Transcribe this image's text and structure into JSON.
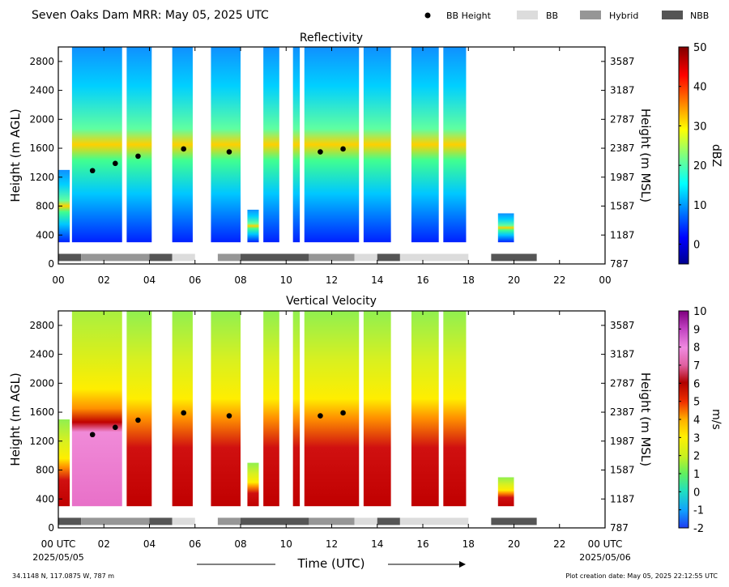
{
  "header": {
    "title": "Seven Oaks Dam MRR:  May 05, 2025 UTC",
    "legend": [
      {
        "label": "BB Height",
        "marker": "dot",
        "color": "#000000"
      },
      {
        "label": "BB",
        "marker": "box",
        "color": "#dcdcdc"
      },
      {
        "label": "Hybrid",
        "marker": "box",
        "color": "#969696"
      },
      {
        "label": "NBB",
        "marker": "box",
        "color": "#555555"
      }
    ]
  },
  "footer": {
    "location": "34.1148 N, 117.0875 W, 787 m",
    "created": "Plot creation date: May 05, 2025 22:12:55 UTC",
    "xlabel": "Time (UTC)",
    "start_date": "2025/05/05",
    "end_date": "2025/05/06"
  },
  "chart_data": [
    {
      "type": "heatmap",
      "title": "Reflectivity",
      "xlabel": "",
      "ylabel": "Height (m AGL)",
      "ylabel_right": "Height (m MSL)",
      "xlim": [
        0,
        24
      ],
      "ylim": [
        0,
        3000
      ],
      "x_ticks": [
        "00",
        "02",
        "04",
        "06",
        "08",
        "10",
        "12",
        "14",
        "16",
        "18",
        "20",
        "22",
        "00"
      ],
      "y_ticks": [
        0,
        400,
        800,
        1200,
        1600,
        2000,
        2400,
        2800
      ],
      "y_ticks_right": [
        "787",
        "1187",
        "1587",
        "1987",
        "2387",
        "2787",
        "3187",
        "3587"
      ],
      "colorbar": {
        "label": "dBZ",
        "min": -5,
        "max": 50,
        "ticks": [
          0,
          10,
          20,
          30,
          40,
          50
        ],
        "palette": "jet"
      },
      "bb_height": [
        {
          "x": 1.5,
          "y": 1290
        },
        {
          "x": 2.5,
          "y": 1390
        },
        {
          "x": 3.5,
          "y": 1490
        },
        {
          "x": 5.5,
          "y": 1590
        },
        {
          "x": 7.5,
          "y": 1550
        },
        {
          "x": 11.5,
          "y": 1550
        },
        {
          "x": 12.5,
          "y": 1590
        }
      ],
      "echo_periods": [
        {
          "start": 0.0,
          "end": 0.5,
          "top": 1300
        },
        {
          "start": 0.6,
          "end": 2.8,
          "top": 3000
        },
        {
          "start": 3.0,
          "end": 4.1,
          "top": 3000
        },
        {
          "start": 5.0,
          "end": 5.9,
          "top": 3000
        },
        {
          "start": 6.7,
          "end": 8.0,
          "top": 3000
        },
        {
          "start": 8.3,
          "end": 8.8,
          "top": 750
        },
        {
          "start": 9.0,
          "end": 9.7,
          "top": 3000
        },
        {
          "start": 10.3,
          "end": 10.6,
          "top": 3000
        },
        {
          "start": 10.8,
          "end": 13.2,
          "top": 3000
        },
        {
          "start": 13.4,
          "end": 14.6,
          "top": 3000
        },
        {
          "start": 15.5,
          "end": 16.7,
          "top": 3000
        },
        {
          "start": 16.9,
          "end": 17.9,
          "top": 3000
        },
        {
          "start": 19.3,
          "end": 20.0,
          "top": 700
        }
      ],
      "bb_type_bars": [
        {
          "start": 0.0,
          "end": 1.0,
          "type": "NBB"
        },
        {
          "start": 1.0,
          "end": 4.0,
          "type": "Hybrid"
        },
        {
          "start": 4.0,
          "end": 5.0,
          "type": "NBB"
        },
        {
          "start": 5.0,
          "end": 6.0,
          "type": "BB"
        },
        {
          "start": 7.0,
          "end": 8.0,
          "type": "Hybrid"
        },
        {
          "start": 8.0,
          "end": 11.0,
          "type": "NBB"
        },
        {
          "start": 11.0,
          "end": 13.0,
          "type": "Hybrid"
        },
        {
          "start": 13.0,
          "end": 14.0,
          "type": "BB"
        },
        {
          "start": 14.0,
          "end": 15.0,
          "type": "NBB"
        },
        {
          "start": 15.0,
          "end": 18.0,
          "type": "BB"
        },
        {
          "start": 19.0,
          "end": 21.0,
          "type": "NBB"
        }
      ]
    },
    {
      "type": "heatmap",
      "title": "Vertical Velocity",
      "xlabel": "Time (UTC)",
      "ylabel": "Height (m AGL)",
      "ylabel_right": "Height (m MSL)",
      "xlim": [
        0,
        24
      ],
      "ylim": [
        0,
        3000
      ],
      "x_ticks": [
        "00 UTC",
        "02",
        "04",
        "06",
        "08",
        "10",
        "12",
        "14",
        "16",
        "18",
        "20",
        "22",
        "00 UTC"
      ],
      "y_ticks": [
        0,
        400,
        800,
        1200,
        1600,
        2000,
        2400,
        2800
      ],
      "y_ticks_right": [
        "787",
        "1187",
        "1587",
        "1987",
        "2387",
        "2787",
        "3187",
        "3587"
      ],
      "colorbar": {
        "label": "m/s",
        "min": -2,
        "max": 10,
        "ticks": [
          -2,
          -1,
          0,
          1,
          2,
          3,
          4,
          5,
          6,
          7,
          8,
          9,
          10
        ],
        "palette": "velocity"
      },
      "bb_height": [
        {
          "x": 1.5,
          "y": 1290
        },
        {
          "x": 2.5,
          "y": 1390
        },
        {
          "x": 3.5,
          "y": 1490
        },
        {
          "x": 5.5,
          "y": 1590
        },
        {
          "x": 7.5,
          "y": 1550
        },
        {
          "x": 11.5,
          "y": 1550
        },
        {
          "x": 12.5,
          "y": 1590
        }
      ],
      "echo_periods": [
        {
          "start": 0.0,
          "end": 0.5,
          "top": 1500
        },
        {
          "start": 0.6,
          "end": 2.8,
          "top": 3000
        },
        {
          "start": 3.0,
          "end": 4.1,
          "top": 3000
        },
        {
          "start": 5.0,
          "end": 5.9,
          "top": 3000
        },
        {
          "start": 6.7,
          "end": 8.0,
          "top": 3000
        },
        {
          "start": 8.3,
          "end": 8.8,
          "top": 900
        },
        {
          "start": 9.0,
          "end": 9.7,
          "top": 3000
        },
        {
          "start": 10.3,
          "end": 10.6,
          "top": 3000
        },
        {
          "start": 10.8,
          "end": 13.2,
          "top": 3000
        },
        {
          "start": 13.4,
          "end": 14.6,
          "top": 3000
        },
        {
          "start": 15.5,
          "end": 16.7,
          "top": 3000
        },
        {
          "start": 16.9,
          "end": 17.9,
          "top": 3000
        },
        {
          "start": 19.3,
          "end": 20.0,
          "top": 700
        }
      ],
      "bb_type_bars": [
        {
          "start": 0.0,
          "end": 1.0,
          "type": "NBB"
        },
        {
          "start": 1.0,
          "end": 4.0,
          "type": "Hybrid"
        },
        {
          "start": 4.0,
          "end": 5.0,
          "type": "NBB"
        },
        {
          "start": 5.0,
          "end": 6.0,
          "type": "BB"
        },
        {
          "start": 7.0,
          "end": 8.0,
          "type": "Hybrid"
        },
        {
          "start": 8.0,
          "end": 11.0,
          "type": "NBB"
        },
        {
          "start": 11.0,
          "end": 13.0,
          "type": "Hybrid"
        },
        {
          "start": 13.0,
          "end": 14.0,
          "type": "BB"
        },
        {
          "start": 14.0,
          "end": 15.0,
          "type": "NBB"
        },
        {
          "start": 15.0,
          "end": 18.0,
          "type": "BB"
        },
        {
          "start": 19.0,
          "end": 21.0,
          "type": "NBB"
        }
      ]
    }
  ]
}
